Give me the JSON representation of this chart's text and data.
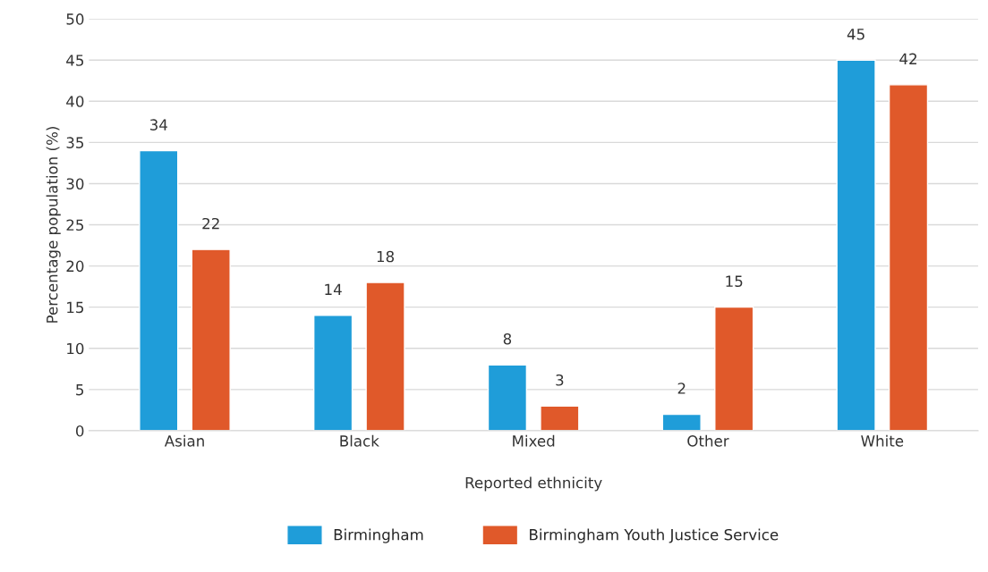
{
  "chart_data": {
    "type": "bar",
    "xlabel": "Reported ethnicity",
    "ylabel": "Percentage population (%)",
    "categories": [
      "Asian",
      "Black",
      "Mixed",
      "Other",
      "White"
    ],
    "series": [
      {
        "name": "Birmingham",
        "color": "#1f9dd9",
        "values": [
          34,
          14,
          8,
          2,
          45
        ]
      },
      {
        "name": "Birmingham Youth Justice Service",
        "color": "#e0592a",
        "values": [
          22,
          18,
          3,
          15,
          42
        ]
      }
    ],
    "ylim": [
      0,
      50
    ],
    "yticks": [
      0,
      5,
      10,
      15,
      20,
      25,
      30,
      35,
      40,
      45,
      50
    ],
    "grid": "y",
    "legend": "bottom",
    "data_labels": true
  }
}
